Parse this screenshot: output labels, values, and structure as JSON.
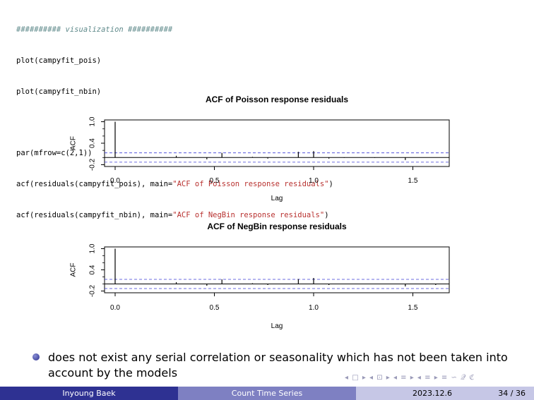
{
  "code": {
    "line1": "########## visualization ##########",
    "line2": "plot(campyfit_pois)",
    "line3": "plot(campyfit_nbin)",
    "line5_pre": "par(mfrow=c(2,1))",
    "line6_pre": "acf(residuals(campyfit_pois), main=",
    "line6_str": "\"ACF of Poisson response residuals\"",
    "line6_post": ")",
    "line7_pre": "acf(residuals(campyfit_nbin), main=",
    "line7_str": "\"ACF of NegBin response residuals\"",
    "line7_post": ")"
  },
  "chart_data": [
    {
      "type": "bar",
      "title": "ACF of Poisson response residuals",
      "xlabel": "Lag",
      "ylabel": "ACF",
      "x_ticks": [
        "0.0",
        "0.5",
        "1.0",
        "1.5"
      ],
      "y_ticks": [
        "-0.2",
        "0.4",
        "1.0"
      ],
      "xlim": [
        0,
        1.67
      ],
      "ylim": [
        -0.25,
        1.05
      ],
      "x": [
        0.0,
        0.077,
        0.154,
        0.231,
        0.308,
        0.385,
        0.462,
        0.538,
        0.615,
        0.692,
        0.769,
        0.846,
        0.923,
        1.0,
        1.077,
        1.154,
        1.231,
        1.308,
        1.385,
        1.462,
        1.538,
        1.615
      ],
      "values": [
        1.0,
        0.0,
        0.0,
        0.0,
        0.05,
        0.0,
        -0.05,
        0.13,
        0.0,
        0.02,
        -0.03,
        0.0,
        0.16,
        0.18,
        -0.03,
        -0.01,
        0.0,
        -0.01,
        0.0,
        -0.07,
        0.0,
        0.0
      ],
      "conf_band": [
        -0.13,
        0.13
      ]
    },
    {
      "type": "bar",
      "title": "ACF of NegBin response residuals",
      "xlabel": "Lag",
      "ylabel": "ACF",
      "x_ticks": [
        "0.0",
        "0.5",
        "1.0",
        "1.5"
      ],
      "y_ticks": [
        "-0.2",
        "0.4",
        "1.0"
      ],
      "xlim": [
        0,
        1.67
      ],
      "ylim": [
        -0.25,
        1.05
      ],
      "x": [
        0.0,
        0.077,
        0.154,
        0.231,
        0.308,
        0.385,
        0.462,
        0.538,
        0.615,
        0.692,
        0.769,
        0.846,
        0.923,
        1.0,
        1.077,
        1.154,
        1.231,
        1.308,
        1.385,
        1.462,
        1.538,
        1.615
      ],
      "values": [
        1.0,
        0.0,
        0.0,
        0.0,
        0.05,
        0.0,
        -0.05,
        0.13,
        0.0,
        0.02,
        -0.03,
        0.0,
        0.14,
        0.17,
        -0.03,
        -0.01,
        0.0,
        -0.01,
        0.0,
        -0.07,
        0.0,
        -0.03
      ],
      "conf_band": [
        -0.13,
        0.13
      ]
    }
  ],
  "bullet": {
    "text": "does not exist any serial correlation or seasonality which has not been taken into account by the models"
  },
  "nav": {
    "symbols": "◂ □ ▸ ◂ ⊡ ▸ ◂ ≡ ▸ ◂ ≡ ▸ ≡ ∽ 𝒬 ℭ"
  },
  "footer": {
    "author": "Inyoung Baek",
    "title": "Count Time Series",
    "date": "2023.12.6",
    "page": "34 / 36"
  }
}
